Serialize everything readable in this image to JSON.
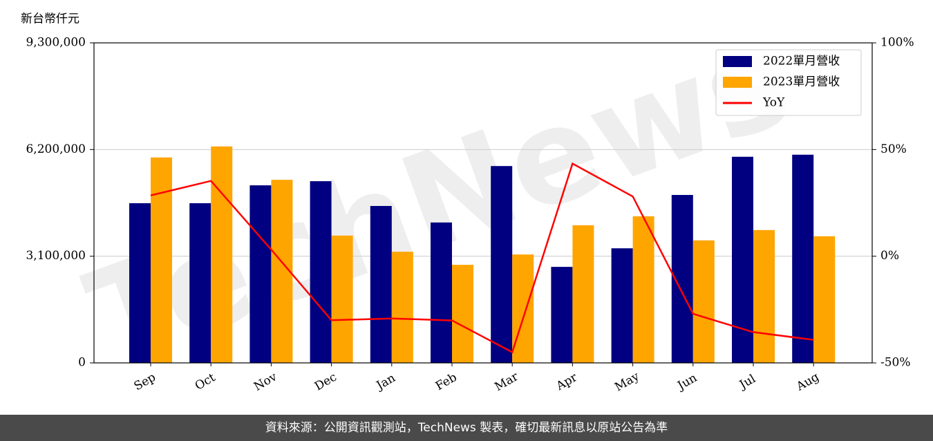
{
  "chart_data": {
    "type": "bar-line",
    "y_axis_label": "新台幣仟元",
    "watermark": "TechNews",
    "categories": [
      "Sep",
      "Oct",
      "Nov",
      "Dec",
      "Jan",
      "Feb",
      "Mar",
      "Apr",
      "May",
      "Jun",
      "Jul",
      "Aug"
    ],
    "series": [
      {
        "name": "2022單月營收",
        "color": "#000080",
        "values": [
          4640000,
          4640000,
          5160000,
          5280000,
          4560000,
          4080000,
          5720000,
          2790000,
          3330000,
          4880000,
          5990000,
          6050000
        ]
      },
      {
        "name": "2023單月營收",
        "color": "#ffa500",
        "values": [
          5970000,
          6290000,
          5320000,
          3700000,
          3230000,
          2850000,
          3150000,
          4000000,
          4260000,
          3560000,
          3860000,
          3680000
        ]
      },
      {
        "name": "YoY",
        "color": "#ff0000",
        "type": "line",
        "axis": "y2",
        "values": [
          28.5,
          35.3,
          3.1,
          -30,
          -29.2,
          -30.1,
          -45,
          43.4,
          28,
          -27,
          -35.6,
          -39.2
        ]
      }
    ],
    "ylim": [
      0,
      9300000
    ],
    "yticks": [
      0,
      {
        "value": 3100000,
        "label": "3,100,000"
      },
      {
        "value": 6200000,
        "label": "6,200,000"
      },
      {
        "value": 9300000,
        "label": "9,300,000"
      }
    ],
    "y2lim": [
      -50,
      100
    ],
    "y2ticks": [
      {
        "value": -50,
        "label": "-50%"
      },
      {
        "value": 0,
        "label": "0%"
      },
      {
        "value": 50,
        "label": "50%"
      },
      {
        "value": 100,
        "label": "100%"
      }
    ],
    "grid": true,
    "legend": "upper right"
  },
  "footer": "資料來源：公開資訊觀測站，TechNews 製表，確切最新訊息以原站公告為準"
}
